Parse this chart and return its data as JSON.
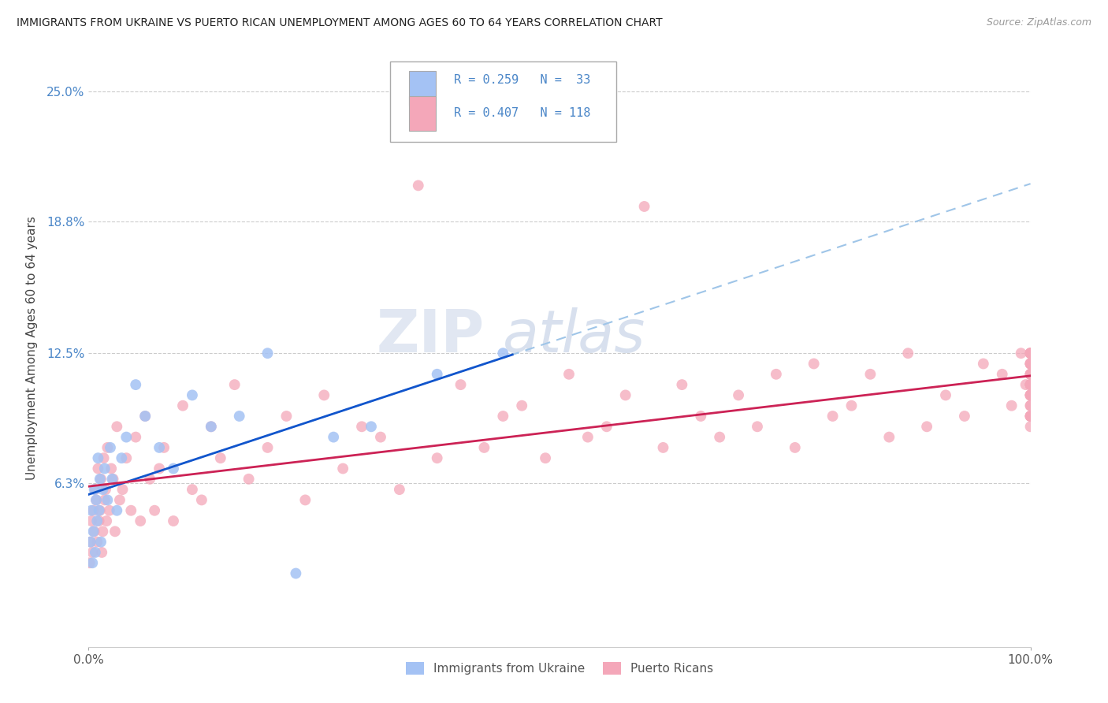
{
  "title": "IMMIGRANTS FROM UKRAINE VS PUERTO RICAN UNEMPLOYMENT AMONG AGES 60 TO 64 YEARS CORRELATION CHART",
  "source": "Source: ZipAtlas.com",
  "ylabel": "Unemployment Among Ages 60 to 64 years",
  "xlim": [
    0,
    100
  ],
  "ylim": [
    -1.5,
    27
  ],
  "yticks": [
    0,
    6.3,
    12.5,
    18.8,
    25.0
  ],
  "ytick_labels": [
    "",
    "6.3%",
    "12.5%",
    "18.8%",
    "25.0%"
  ],
  "legend_label1": "Immigrants from Ukraine",
  "legend_label2": "Puerto Ricans",
  "blue_color": "#a4c2f4",
  "pink_color": "#f4a7b9",
  "blue_line_color": "#1155cc",
  "pink_line_color": "#cc2255",
  "blue_dash_color": "#9fc5e8",
  "watermark_zip": "ZIP",
  "watermark_atlas": "atlas",
  "ukraine_x": [
    0.2,
    0.3,
    0.4,
    0.5,
    0.6,
    0.7,
    0.8,
    0.9,
    1.0,
    1.1,
    1.2,
    1.3,
    1.5,
    1.7,
    2.0,
    2.3,
    2.5,
    3.0,
    3.5,
    4.0,
    5.0,
    6.0,
    7.5,
    9.0,
    11.0,
    13.0,
    16.0,
    19.0,
    22.0,
    26.0,
    30.0,
    37.0,
    44.0
  ],
  "ukraine_y": [
    3.5,
    5.0,
    2.5,
    4.0,
    6.0,
    3.0,
    5.5,
    4.5,
    7.5,
    5.0,
    6.5,
    3.5,
    6.0,
    7.0,
    5.5,
    8.0,
    6.5,
    5.0,
    7.5,
    8.5,
    11.0,
    9.5,
    8.0,
    7.0,
    10.5,
    9.0,
    9.5,
    12.5,
    2.0,
    8.5,
    9.0,
    11.5,
    12.5
  ],
  "pr_x": [
    0.1,
    0.2,
    0.3,
    0.4,
    0.5,
    0.6,
    0.7,
    0.8,
    0.9,
    1.0,
    1.1,
    1.2,
    1.3,
    1.4,
    1.5,
    1.6,
    1.7,
    1.8,
    1.9,
    2.0,
    2.2,
    2.4,
    2.6,
    2.8,
    3.0,
    3.3,
    3.6,
    4.0,
    4.5,
    5.0,
    5.5,
    6.0,
    6.5,
    7.0,
    7.5,
    8.0,
    9.0,
    10.0,
    11.0,
    12.0,
    13.0,
    14.0,
    15.5,
    17.0,
    19.0,
    21.0,
    23.0,
    25.0,
    27.0,
    29.0,
    31.0,
    33.0,
    35.0,
    37.0,
    39.5,
    42.0,
    44.0,
    46.0,
    48.5,
    51.0,
    53.0,
    55.0,
    57.0,
    59.0,
    61.0,
    63.0,
    65.0,
    67.0,
    69.0,
    71.0,
    73.0,
    75.0,
    77.0,
    79.0,
    81.0,
    83.0,
    85.0,
    87.0,
    89.0,
    91.0,
    93.0,
    95.0,
    97.0,
    98.0,
    99.0,
    99.5,
    100.0,
    100.0,
    100.0,
    100.0,
    100.0,
    100.0,
    100.0,
    100.0,
    100.0,
    100.0,
    100.0,
    100.0,
    100.0,
    100.0,
    100.0,
    100.0,
    100.0,
    100.0,
    100.0,
    100.0,
    100.0,
    100.0,
    100.0,
    100.0,
    100.0,
    100.0,
    100.0,
    100.0,
    100.0,
    100.0,
    100.0,
    100.0
  ],
  "pr_y": [
    2.5,
    3.5,
    4.5,
    3.0,
    5.0,
    4.0,
    6.0,
    5.5,
    3.5,
    7.0,
    4.5,
    5.0,
    6.5,
    3.0,
    4.0,
    7.5,
    5.5,
    6.0,
    4.5,
    8.0,
    5.0,
    7.0,
    6.5,
    4.0,
    9.0,
    5.5,
    6.0,
    7.5,
    5.0,
    8.5,
    4.5,
    9.5,
    6.5,
    5.0,
    7.0,
    8.0,
    4.5,
    10.0,
    6.0,
    5.5,
    9.0,
    7.5,
    11.0,
    6.5,
    8.0,
    9.5,
    5.5,
    10.5,
    7.0,
    9.0,
    8.5,
    6.0,
    20.5,
    7.5,
    11.0,
    8.0,
    9.5,
    10.0,
    7.5,
    11.5,
    8.5,
    9.0,
    10.5,
    19.5,
    8.0,
    11.0,
    9.5,
    8.5,
    10.5,
    9.0,
    11.5,
    8.0,
    12.0,
    9.5,
    10.0,
    11.5,
    8.5,
    12.5,
    9.0,
    10.5,
    9.5,
    12.0,
    11.5,
    10.0,
    12.5,
    11.0,
    10.5,
    12.0,
    11.5,
    9.5,
    10.5,
    11.0,
    12.5,
    9.0,
    12.0,
    10.5,
    11.0,
    12.5,
    10.0,
    11.5,
    9.5,
    12.0,
    11.0,
    12.5,
    10.5,
    11.5,
    10.0,
    12.5,
    11.0,
    9.5,
    12.0,
    11.5,
    10.5,
    12.0,
    11.0,
    9.5,
    12.5,
    11.0
  ]
}
